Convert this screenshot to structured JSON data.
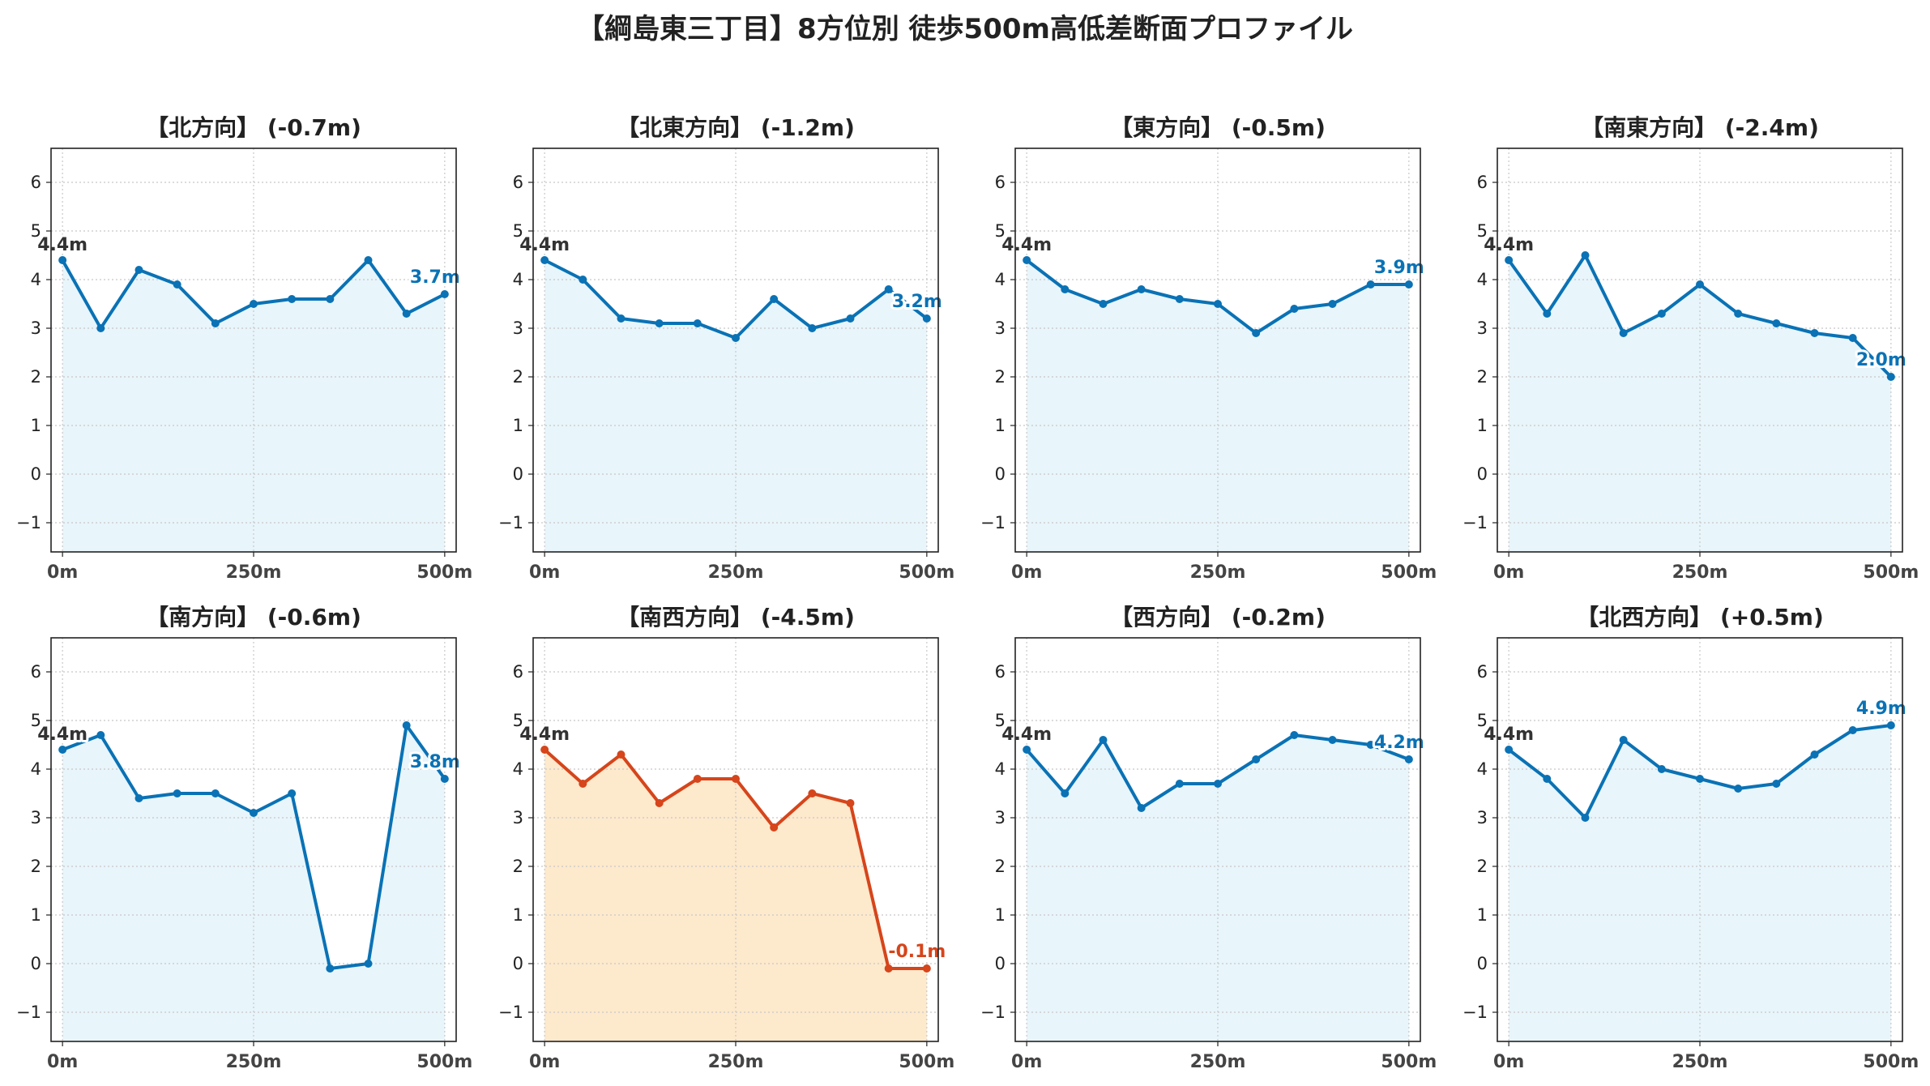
{
  "title": "【綱島東三丁目】8方位別 徒歩500m高低差断面プロファイル",
  "colors": {
    "normal_line": "#0a72b5",
    "normal_fill": "#e8f5fb",
    "highlight_line": "#d6451b",
    "highlight_fill": "#fde9cc",
    "start_label": "#333333",
    "grid": "#c8c8c8"
  },
  "chart_data": [
    {
      "type": "line",
      "title": "【北方向】 (-0.7m)",
      "highlight": false,
      "x": [
        0,
        50,
        100,
        150,
        200,
        250,
        300,
        350,
        400,
        450,
        500
      ],
      "y": [
        4.4,
        3.0,
        4.2,
        3.9,
        3.1,
        3.5,
        3.6,
        3.6,
        4.4,
        3.3,
        3.7
      ],
      "start_label": "4.4m",
      "end_label": "3.7m",
      "xticks": [
        "0m",
        "250m",
        "500m"
      ],
      "yticks": [
        "−1",
        "0",
        "1",
        "2",
        "3",
        "4",
        "5",
        "6"
      ],
      "xlim": [
        -15,
        515
      ],
      "ylim": [
        -1.6,
        6.7
      ],
      "grid": true
    },
    {
      "type": "line",
      "title": "【北東方向】 (-1.2m)",
      "highlight": false,
      "x": [
        0,
        50,
        100,
        150,
        200,
        250,
        300,
        350,
        400,
        450,
        500
      ],
      "y": [
        4.4,
        4.0,
        3.2,
        3.1,
        3.1,
        2.8,
        3.6,
        3.0,
        3.2,
        3.8,
        3.2
      ],
      "start_label": "4.4m",
      "end_label": "3.2m",
      "xticks": [
        "0m",
        "250m",
        "500m"
      ],
      "yticks": [
        "−1",
        "0",
        "1",
        "2",
        "3",
        "4",
        "5",
        "6"
      ],
      "xlim": [
        -15,
        515
      ],
      "ylim": [
        -1.6,
        6.7
      ],
      "grid": true
    },
    {
      "type": "line",
      "title": "【東方向】 (-0.5m)",
      "highlight": false,
      "x": [
        0,
        50,
        100,
        150,
        200,
        250,
        300,
        350,
        400,
        450,
        500
      ],
      "y": [
        4.4,
        3.8,
        3.5,
        3.8,
        3.6,
        3.5,
        2.9,
        3.4,
        3.5,
        3.9,
        3.9
      ],
      "start_label": "4.4m",
      "end_label": "3.9m",
      "xticks": [
        "0m",
        "250m",
        "500m"
      ],
      "yticks": [
        "−1",
        "0",
        "1",
        "2",
        "3",
        "4",
        "5",
        "6"
      ],
      "xlim": [
        -15,
        515
      ],
      "ylim": [
        -1.6,
        6.7
      ],
      "grid": true
    },
    {
      "type": "line",
      "title": "【南東方向】 (-2.4m)",
      "highlight": false,
      "x": [
        0,
        50,
        100,
        150,
        200,
        250,
        300,
        350,
        400,
        450,
        500
      ],
      "y": [
        4.4,
        3.3,
        4.5,
        2.9,
        3.3,
        3.9,
        3.3,
        3.1,
        2.9,
        2.8,
        2.0
      ],
      "start_label": "4.4m",
      "end_label": "2.0m",
      "xticks": [
        "0m",
        "250m",
        "500m"
      ],
      "yticks": [
        "−1",
        "0",
        "1",
        "2",
        "3",
        "4",
        "5",
        "6"
      ],
      "xlim": [
        -15,
        515
      ],
      "ylim": [
        -1.6,
        6.7
      ],
      "grid": true
    },
    {
      "type": "line",
      "title": "【南方向】 (-0.6m)",
      "highlight": false,
      "x": [
        0,
        50,
        100,
        150,
        200,
        250,
        300,
        350,
        400,
        450,
        500
      ],
      "y": [
        4.4,
        4.7,
        3.4,
        3.5,
        3.5,
        3.1,
        3.5,
        -0.1,
        0.0,
        4.9,
        3.8
      ],
      "start_label": "4.4m",
      "end_label": "3.8m",
      "xticks": [
        "0m",
        "250m",
        "500m"
      ],
      "yticks": [
        "−1",
        "0",
        "1",
        "2",
        "3",
        "4",
        "5",
        "6"
      ],
      "xlim": [
        -15,
        515
      ],
      "ylim": [
        -1.6,
        6.7
      ],
      "grid": true
    },
    {
      "type": "line",
      "title": "【南西方向】 (-4.5m)",
      "highlight": true,
      "x": [
        0,
        50,
        100,
        150,
        200,
        250,
        300,
        350,
        400,
        450,
        500
      ],
      "y": [
        4.4,
        3.7,
        4.3,
        3.3,
        3.8,
        3.8,
        2.8,
        3.5,
        3.3,
        -0.1,
        -0.1
      ],
      "start_label": "4.4m",
      "end_label": "-0.1m",
      "xticks": [
        "0m",
        "250m",
        "500m"
      ],
      "yticks": [
        "−1",
        "0",
        "1",
        "2",
        "3",
        "4",
        "5",
        "6"
      ],
      "xlim": [
        -15,
        515
      ],
      "ylim": [
        -1.6,
        6.7
      ],
      "grid": true
    },
    {
      "type": "line",
      "title": "【西方向】 (-0.2m)",
      "highlight": false,
      "x": [
        0,
        50,
        100,
        150,
        200,
        250,
        300,
        350,
        400,
        450,
        500
      ],
      "y": [
        4.4,
        3.5,
        4.6,
        3.2,
        3.7,
        3.7,
        4.2,
        4.7,
        4.6,
        4.5,
        4.2
      ],
      "start_label": "4.4m",
      "end_label": "4.2m",
      "xticks": [
        "0m",
        "250m",
        "500m"
      ],
      "yticks": [
        "−1",
        "0",
        "1",
        "2",
        "3",
        "4",
        "5",
        "6"
      ],
      "xlim": [
        -15,
        515
      ],
      "ylim": [
        -1.6,
        6.7
      ],
      "grid": true
    },
    {
      "type": "line",
      "title": "【北西方向】 (+0.5m)",
      "highlight": false,
      "x": [
        0,
        50,
        100,
        150,
        200,
        250,
        300,
        350,
        400,
        450,
        500
      ],
      "y": [
        4.4,
        3.8,
        3.0,
        4.6,
        4.0,
        3.8,
        3.6,
        3.7,
        4.3,
        4.8,
        4.9
      ],
      "start_label": "4.4m",
      "end_label": "4.9m",
      "xticks": [
        "0m",
        "250m",
        "500m"
      ],
      "yticks": [
        "−1",
        "0",
        "1",
        "2",
        "3",
        "4",
        "5",
        "6"
      ],
      "xlim": [
        -15,
        515
      ],
      "ylim": [
        -1.6,
        6.7
      ],
      "grid": true
    }
  ]
}
